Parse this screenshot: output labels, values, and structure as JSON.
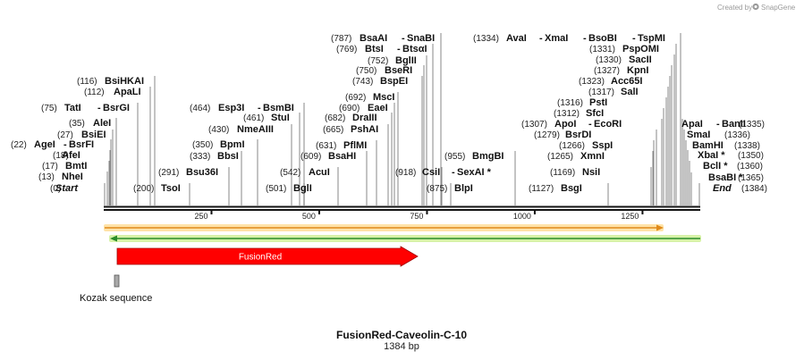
{
  "credit": {
    "prefix": "Created by",
    "brand": "SnapGene"
  },
  "title": "FusionRed-Caveolin-C-10",
  "length_label": "1384 bp",
  "ruler": {
    "ticks": [
      250,
      500,
      750,
      1000,
      1250
    ]
  },
  "features": {
    "fusionred": {
      "label": "FusionRed",
      "color": "#ff0000"
    },
    "kozak": {
      "label": "Kozak sequence",
      "color": "#a9a9a9"
    },
    "orange_bar": {
      "color": "#f0a830"
    },
    "green_bar": {
      "color": "#3aa63a"
    }
  },
  "sites": [
    {
      "pos": "(0)",
      "name": "Start",
      "italic": true
    },
    {
      "pos": "(13)",
      "name": "NheI"
    },
    {
      "pos": "(17)",
      "name": "BmtI"
    },
    {
      "pos": "(18)",
      "name": "AfeI"
    },
    {
      "pos": "(22)",
      "name": "AgeI",
      "name2": "BsrFI"
    },
    {
      "pos": "(27)",
      "name": "BsiEI"
    },
    {
      "pos": "(35)",
      "name": "AleI"
    },
    {
      "pos": "(75)",
      "name": "TatI",
      "name2": "BsrGI"
    },
    {
      "pos": "(112)",
      "name": "ApaLI"
    },
    {
      "pos": "(116)",
      "name": "BsiHKAI"
    },
    {
      "pos": "(200)",
      "name": "TsoI"
    },
    {
      "pos": "(291)",
      "name": "Bsu36I"
    },
    {
      "pos": "(333)",
      "name": "BbsI"
    },
    {
      "pos": "(350)",
      "name": "BpmI"
    },
    {
      "pos": "(430)",
      "name": "NmeAIII"
    },
    {
      "pos": "(461)",
      "name": "StuI"
    },
    {
      "pos": "(464)",
      "name": "Esp3I",
      "name2": "BsmBI"
    },
    {
      "pos": "(501)",
      "name": "BglI"
    },
    {
      "pos": "(542)",
      "name": "AcuI"
    },
    {
      "pos": "(609)",
      "name": "BsaHI"
    },
    {
      "pos": "(631)",
      "name": "PflMI"
    },
    {
      "pos": "(665)",
      "name": "PshAI"
    },
    {
      "pos": "(682)",
      "name": "DraIII"
    },
    {
      "pos": "(690)",
      "name": "EaeI"
    },
    {
      "pos": "(692)",
      "name": "MscI"
    },
    {
      "pos": "(743)",
      "name": "BspEI"
    },
    {
      "pos": "(750)",
      "name": "BseRI"
    },
    {
      "pos": "(752)",
      "name": "BglII"
    },
    {
      "pos": "(769)",
      "name": "BtsI",
      "name2": "BtsαI"
    },
    {
      "pos": "(787)",
      "name": "BsaAI",
      "name2": "SnaBI"
    },
    {
      "pos": "(918)",
      "name": "CsiI",
      "name2": "SexAI *"
    },
    {
      "pos": "(875)",
      "name": "BlpI"
    },
    {
      "pos": "(955)",
      "name": "BmgBI"
    },
    {
      "pos": "(1127)",
      "name": "BsgI"
    },
    {
      "pos": "(1169)",
      "name": "NsiI"
    },
    {
      "pos": "(1265)",
      "name": "XmnI"
    },
    {
      "pos": "(1266)",
      "name": "SspI"
    },
    {
      "pos": "(1279)",
      "name": "BsrDI"
    },
    {
      "pos": "(1307)",
      "name": "ApoI",
      "name2": "EcoRI"
    },
    {
      "pos": "(1312)",
      "name": "SfcI"
    },
    {
      "pos": "(1316)",
      "name": "PstI"
    },
    {
      "pos": "(1317)",
      "name": "SalI"
    },
    {
      "pos": "(1323)",
      "name": "Acc65I"
    },
    {
      "pos": "(1327)",
      "name": "KpnI"
    },
    {
      "pos": "(1330)",
      "name": "SacII"
    },
    {
      "pos": "(1331)",
      "name": "PspOMI"
    },
    {
      "pos": "(1334)",
      "name": "AvaI",
      "name2": "XmaI",
      "name3": "BsoBI",
      "name4": "TspMI"
    },
    {
      "pos": "(1335)",
      "name": "ApaI",
      "name2": "BanII"
    },
    {
      "pos": "(1336)",
      "name": "SmaI"
    },
    {
      "pos": "(1338)",
      "name": "BamHI"
    },
    {
      "pos": "(1350)",
      "name": "XbaI *"
    },
    {
      "pos": "(1360)",
      "name": "BclI *"
    },
    {
      "pos": "(1365)",
      "name": "BsaBI *"
    },
    {
      "pos": "(1384)",
      "name": "End",
      "italic": true
    }
  ]
}
